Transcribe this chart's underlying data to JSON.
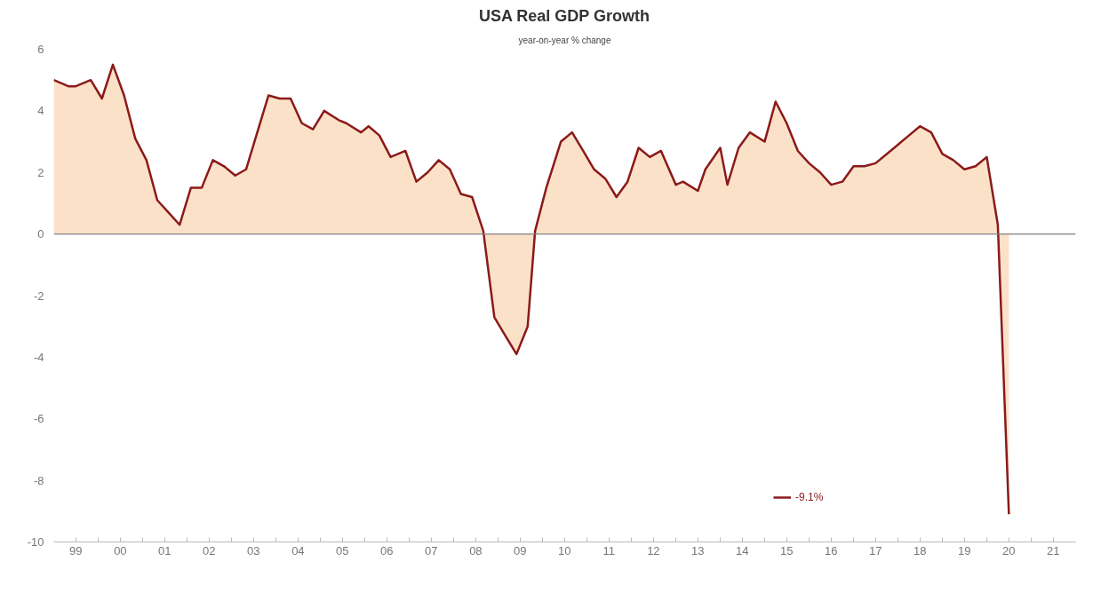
{
  "chart_data": {
    "type": "area",
    "title": "USA Real GDP Growth",
    "subtitle": "year-on-year % change",
    "x": [
      "1999-01",
      "1999-05",
      "1999-07",
      "1999-11",
      "2000-02",
      "2000-05",
      "2000-08",
      "2000-11",
      "2001-02",
      "2001-05",
      "2001-08",
      "2001-11",
      "2002-02",
      "2002-05",
      "2002-08",
      "2002-11",
      "2003-02",
      "2003-05",
      "2003-08",
      "2003-11",
      "2004-02",
      "2004-05",
      "2004-08",
      "2004-11",
      "2005-02",
      "2005-06",
      "2005-08",
      "2005-12",
      "2006-02",
      "2006-05",
      "2006-08",
      "2006-12",
      "2007-03",
      "2007-06",
      "2007-09",
      "2007-12",
      "2008-03",
      "2008-06",
      "2008-09",
      "2008-12",
      "2009-03",
      "2009-06",
      "2009-09",
      "2009-11",
      "2010-02",
      "2010-06",
      "2010-09",
      "2010-12",
      "2011-03",
      "2011-06",
      "2011-09",
      "2011-12",
      "2012-03",
      "2012-06",
      "2012-09",
      "2013-01",
      "2013-03",
      "2013-07",
      "2013-09",
      "2014-01",
      "2014-03",
      "2014-06",
      "2014-09",
      "2015-01",
      "2015-04",
      "2015-07",
      "2015-10",
      "2016-01",
      "2016-04",
      "2016-07",
      "2016-10",
      "2017-01",
      "2017-04",
      "2017-07",
      "2017-10",
      "2018-01",
      "2018-04",
      "2018-07",
      "2018-10",
      "2019-01",
      "2019-04",
      "2019-07",
      "2019-10",
      "2020-01",
      "2020-04",
      "2020-07"
    ],
    "series": [
      {
        "name": "-9.1%",
        "color": "#8b1a1a",
        "values": [
          5.0,
          4.8,
          4.8,
          5.0,
          4.4,
          5.5,
          4.5,
          3.1,
          2.4,
          1.1,
          0.7,
          0.3,
          1.5,
          1.5,
          2.4,
          2.2,
          1.9,
          2.1,
          3.3,
          4.5,
          4.4,
          4.4,
          3.6,
          3.4,
          4.0,
          3.7,
          3.6,
          3.3,
          3.5,
          3.2,
          2.5,
          2.7,
          1.7,
          2.0,
          2.4,
          2.1,
          1.3,
          1.2,
          0.1,
          -2.7,
          -3.3,
          -3.9,
          -3.0,
          0.1,
          1.5,
          3.0,
          3.3,
          2.7,
          2.1,
          1.8,
          1.2,
          1.7,
          2.8,
          2.5,
          2.7,
          1.6,
          1.7,
          1.4,
          2.1,
          2.8,
          1.6,
          2.8,
          3.3,
          3.0,
          4.3,
          3.6,
          2.7,
          2.3,
          2.0,
          1.6,
          1.7,
          2.2,
          2.2,
          2.3,
          2.6,
          2.9,
          3.2,
          3.5,
          3.3,
          2.6,
          2.4,
          2.1,
          2.2,
          2.5,
          0.3,
          -9.1
        ]
      }
    ],
    "xlim": [
      "1999-01",
      "2022-01"
    ],
    "xticks": [
      {
        "value": "1999-07",
        "label": "99"
      },
      {
        "value": "2000-01",
        "label": null
      },
      {
        "value": "2000-07",
        "label": "00"
      },
      {
        "value": "2001-01",
        "label": null
      },
      {
        "value": "2001-07",
        "label": "01"
      },
      {
        "value": "2002-01",
        "label": null
      },
      {
        "value": "2002-07",
        "label": "02"
      },
      {
        "value": "2003-01",
        "label": null
      },
      {
        "value": "2003-07",
        "label": "03"
      },
      {
        "value": "2004-01",
        "label": null
      },
      {
        "value": "2004-07",
        "label": "04"
      },
      {
        "value": "2005-01",
        "label": null
      },
      {
        "value": "2005-07",
        "label": "05"
      },
      {
        "value": "2006-01",
        "label": null
      },
      {
        "value": "2006-07",
        "label": "06"
      },
      {
        "value": "2007-01",
        "label": null
      },
      {
        "value": "2007-07",
        "label": "07"
      },
      {
        "value": "2008-01",
        "label": null
      },
      {
        "value": "2008-07",
        "label": "08"
      },
      {
        "value": "2009-01",
        "label": null
      },
      {
        "value": "2009-07",
        "label": "09"
      },
      {
        "value": "2010-01",
        "label": null
      },
      {
        "value": "2010-07",
        "label": "10"
      },
      {
        "value": "2011-01",
        "label": null
      },
      {
        "value": "2011-07",
        "label": "11"
      },
      {
        "value": "2012-01",
        "label": null
      },
      {
        "value": "2012-07",
        "label": "12"
      },
      {
        "value": "2013-01",
        "label": null
      },
      {
        "value": "2013-07",
        "label": "13"
      },
      {
        "value": "2014-01",
        "label": null
      },
      {
        "value": "2014-07",
        "label": "14"
      },
      {
        "value": "2015-01",
        "label": null
      },
      {
        "value": "2015-07",
        "label": "15"
      },
      {
        "value": "2016-01",
        "label": null
      },
      {
        "value": "2016-07",
        "label": "16"
      },
      {
        "value": "2017-01",
        "label": null
      },
      {
        "value": "2017-07",
        "label": "17"
      },
      {
        "value": "2018-01",
        "label": null
      },
      {
        "value": "2018-07",
        "label": "18"
      },
      {
        "value": "2019-01",
        "label": null
      },
      {
        "value": "2019-07",
        "label": "19"
      },
      {
        "value": "2020-01",
        "label": null
      },
      {
        "value": "2020-07",
        "label": "20"
      },
      {
        "value": "2021-01",
        "label": null
      },
      {
        "value": "2021-07",
        "label": "21"
      }
    ],
    "ylim": [
      -10,
      6
    ],
    "yticks": [
      -10,
      -8,
      -6,
      -4,
      -2,
      0,
      2,
      4,
      6
    ],
    "ref_lines": [
      {
        "axis": "y",
        "value": 0,
        "color": "#808080"
      }
    ],
    "grid": false,
    "legend": "bottom right"
  }
}
